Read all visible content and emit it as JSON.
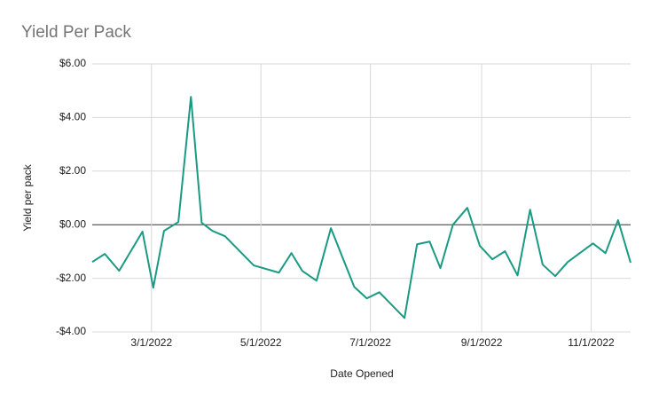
{
  "chart_data": {
    "type": "line",
    "title": "Yield Per Pack",
    "x_label": "Date Opened",
    "y_label": "Yield per pack",
    "color": "#1a9a82",
    "grid": true,
    "x": [
      "2022-01-27",
      "2022-02-03",
      "2022-02-11",
      "2022-02-24",
      "2022-03-02",
      "2022-03-08",
      "2022-03-16",
      "2022-03-23",
      "2022-03-29",
      "2022-04-04",
      "2022-04-11",
      "2022-04-27",
      "2022-05-11",
      "2022-05-18",
      "2022-05-24",
      "2022-06-01",
      "2022-06-09",
      "2022-06-22",
      "2022-06-29",
      "2022-07-06",
      "2022-07-20",
      "2022-07-27",
      "2022-08-03",
      "2022-08-09",
      "2022-08-16",
      "2022-08-24",
      "2022-08-31",
      "2022-09-07",
      "2022-09-14",
      "2022-09-21",
      "2022-09-28",
      "2022-10-05",
      "2022-10-12",
      "2022-10-19",
      "2022-11-02",
      "2022-11-09",
      "2022-11-16",
      "2022-11-23"
    ],
    "values": [
      -1.39,
      -1.09,
      -1.72,
      -0.26,
      -2.35,
      -0.23,
      0.1,
      4.77,
      0.07,
      -0.23,
      -0.43,
      -1.52,
      -1.79,
      -1.06,
      -1.72,
      -2.09,
      -0.13,
      -2.32,
      -2.75,
      -2.52,
      -3.48,
      -0.73,
      -0.63,
      -1.62,
      0.0,
      0.63,
      -0.79,
      -1.29,
      -0.99,
      -1.89,
      0.56,
      -1.49,
      -1.92,
      -1.39,
      -0.7,
      -1.06,
      0.17,
      -1.42
    ],
    "xlim": [
      "2022-01-27",
      "2022-11-23"
    ],
    "xticks": [
      {
        "value": "2022-03-01",
        "label": "3/1/2022"
      },
      {
        "value": "2022-05-01",
        "label": "5/1/2022"
      },
      {
        "value": "2022-07-01",
        "label": "7/1/2022"
      },
      {
        "value": "2022-09-01",
        "label": "9/1/2022"
      },
      {
        "value": "2022-11-01",
        "label": "11/1/2022"
      }
    ],
    "ylim": [
      -4,
      6
    ],
    "yticks": [
      {
        "value": -4,
        "label": "-$4.00"
      },
      {
        "value": -2,
        "label": "-$2.00"
      },
      {
        "value": 0,
        "label": "$0.00"
      },
      {
        "value": 2,
        "label": "$2.00"
      },
      {
        "value": 4,
        "label": "$4.00"
      },
      {
        "value": 6,
        "label": "$6.00"
      }
    ]
  }
}
